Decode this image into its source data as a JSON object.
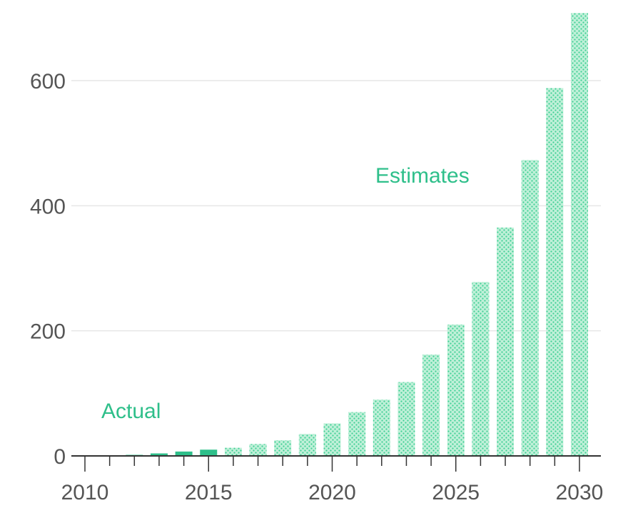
{
  "chart_data": {
    "type": "bar",
    "title": "",
    "xlabel": "",
    "ylabel": "",
    "ylim": [
      0,
      710
    ],
    "xlim": [
      2010,
      2030
    ],
    "grid": true,
    "legend": "none",
    "y_ticks": [
      0,
      200,
      400,
      600
    ],
    "x_ticks": [
      2010,
      2015,
      2020,
      2025,
      2030
    ],
    "annotations": [
      {
        "text": "Actual",
        "applies_to": "actual"
      },
      {
        "text": "Estimates",
        "applies_to": "estimate"
      }
    ],
    "colors": {
      "actual": "#2ebf8a",
      "estimate_fill": "#bff0d8",
      "estimate_dots": "#3fcf95",
      "annotation": "#2ebf8a",
      "grid": "#e6e6e6",
      "axis": "#333333"
    },
    "series": [
      {
        "kind": "actual",
        "x": [
          2012,
          2013,
          2014,
          2015
        ],
        "values": [
          0.5,
          4,
          7,
          10
        ]
      },
      {
        "kind": "estimate",
        "x": [
          2016,
          2017,
          2018,
          2019,
          2020,
          2021,
          2022,
          2023,
          2024,
          2025,
          2026,
          2027,
          2028,
          2029,
          2030
        ],
        "values": [
          13,
          19,
          25,
          35,
          52,
          70,
          90,
          118,
          162,
          210,
          278,
          365,
          473,
          588,
          708
        ]
      }
    ]
  }
}
